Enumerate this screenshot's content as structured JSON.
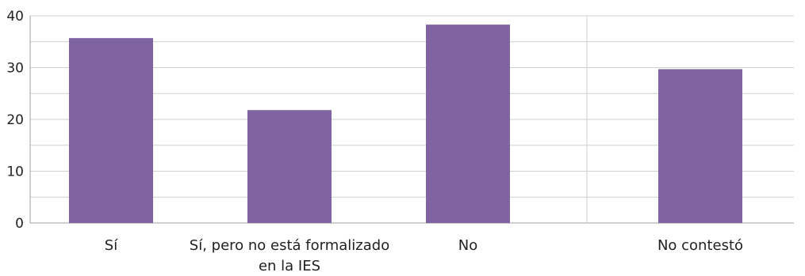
{
  "chart_data": {
    "type": "bar",
    "categories": [
      "Sí",
      "Sí, pero no está formalizado en la IES",
      "No",
      "No contestó"
    ],
    "category_lines": [
      [
        "Sí"
      ],
      [
        "Sí, pero no está formalizado",
        "en la IES"
      ],
      [
        "No"
      ],
      [
        "No contestó"
      ]
    ],
    "values": [
      35.7,
      21.8,
      38.3,
      29.7
    ],
    "ylim": [
      0,
      40
    ],
    "yticks": [
      0,
      10,
      20,
      30,
      40
    ],
    "grid": true,
    "bar_color": "#8064a2",
    "title": "",
    "xlabel": "",
    "ylabel": ""
  }
}
